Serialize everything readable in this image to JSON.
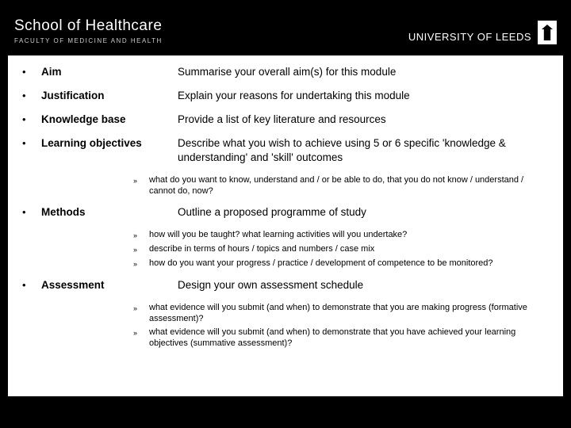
{
  "header": {
    "school": "School of Healthcare",
    "faculty": "FACULTY OF MEDICINE AND HEALTH",
    "university": "UNIVERSITY OF LEEDS"
  },
  "rows": [
    {
      "label": "Aim",
      "desc": "Summarise your overall aim(s) for this module"
    },
    {
      "label": "Justification",
      "desc": "Explain your reasons for undertaking this module"
    },
    {
      "label": "Knowledge base",
      "desc": "Provide a list of key literature and resources"
    },
    {
      "label": "Learning objectives",
      "desc": "Describe what you wish to achieve using 5 or 6 specific 'knowledge & understanding' and 'skill' outcomes"
    }
  ],
  "sub1": [
    "what do you want to know, understand and / or be able to do, that you do not know / understand / cannot do, now?"
  ],
  "rowMethods": {
    "label": "Methods",
    "desc": "Outline a proposed programme of study"
  },
  "sub2": [
    "how will you be taught?   what learning activities will you  undertake?",
    "describe in terms of hours / topics and numbers / case mix",
    "how do you want your progress / practice  / development of competence to be monitored?"
  ],
  "rowAssessment": {
    "label": "Assessment",
    "desc": "Design your own assessment schedule"
  },
  "sub3": [
    "what evidence will you submit (and when) to demonstrate that you are making progress (formative assessment)?",
    "what evidence will you submit (and when) to demonstrate that you have achieved your learning objectives (summative assessment)?"
  ],
  "style": {
    "bg": "#000000",
    "content_bg": "#ffffff",
    "text": "#000000",
    "header_text": "#ffffff",
    "label_fontsize": 13.5,
    "desc_fontsize": 13.5,
    "sub_fontsize": 11
  }
}
